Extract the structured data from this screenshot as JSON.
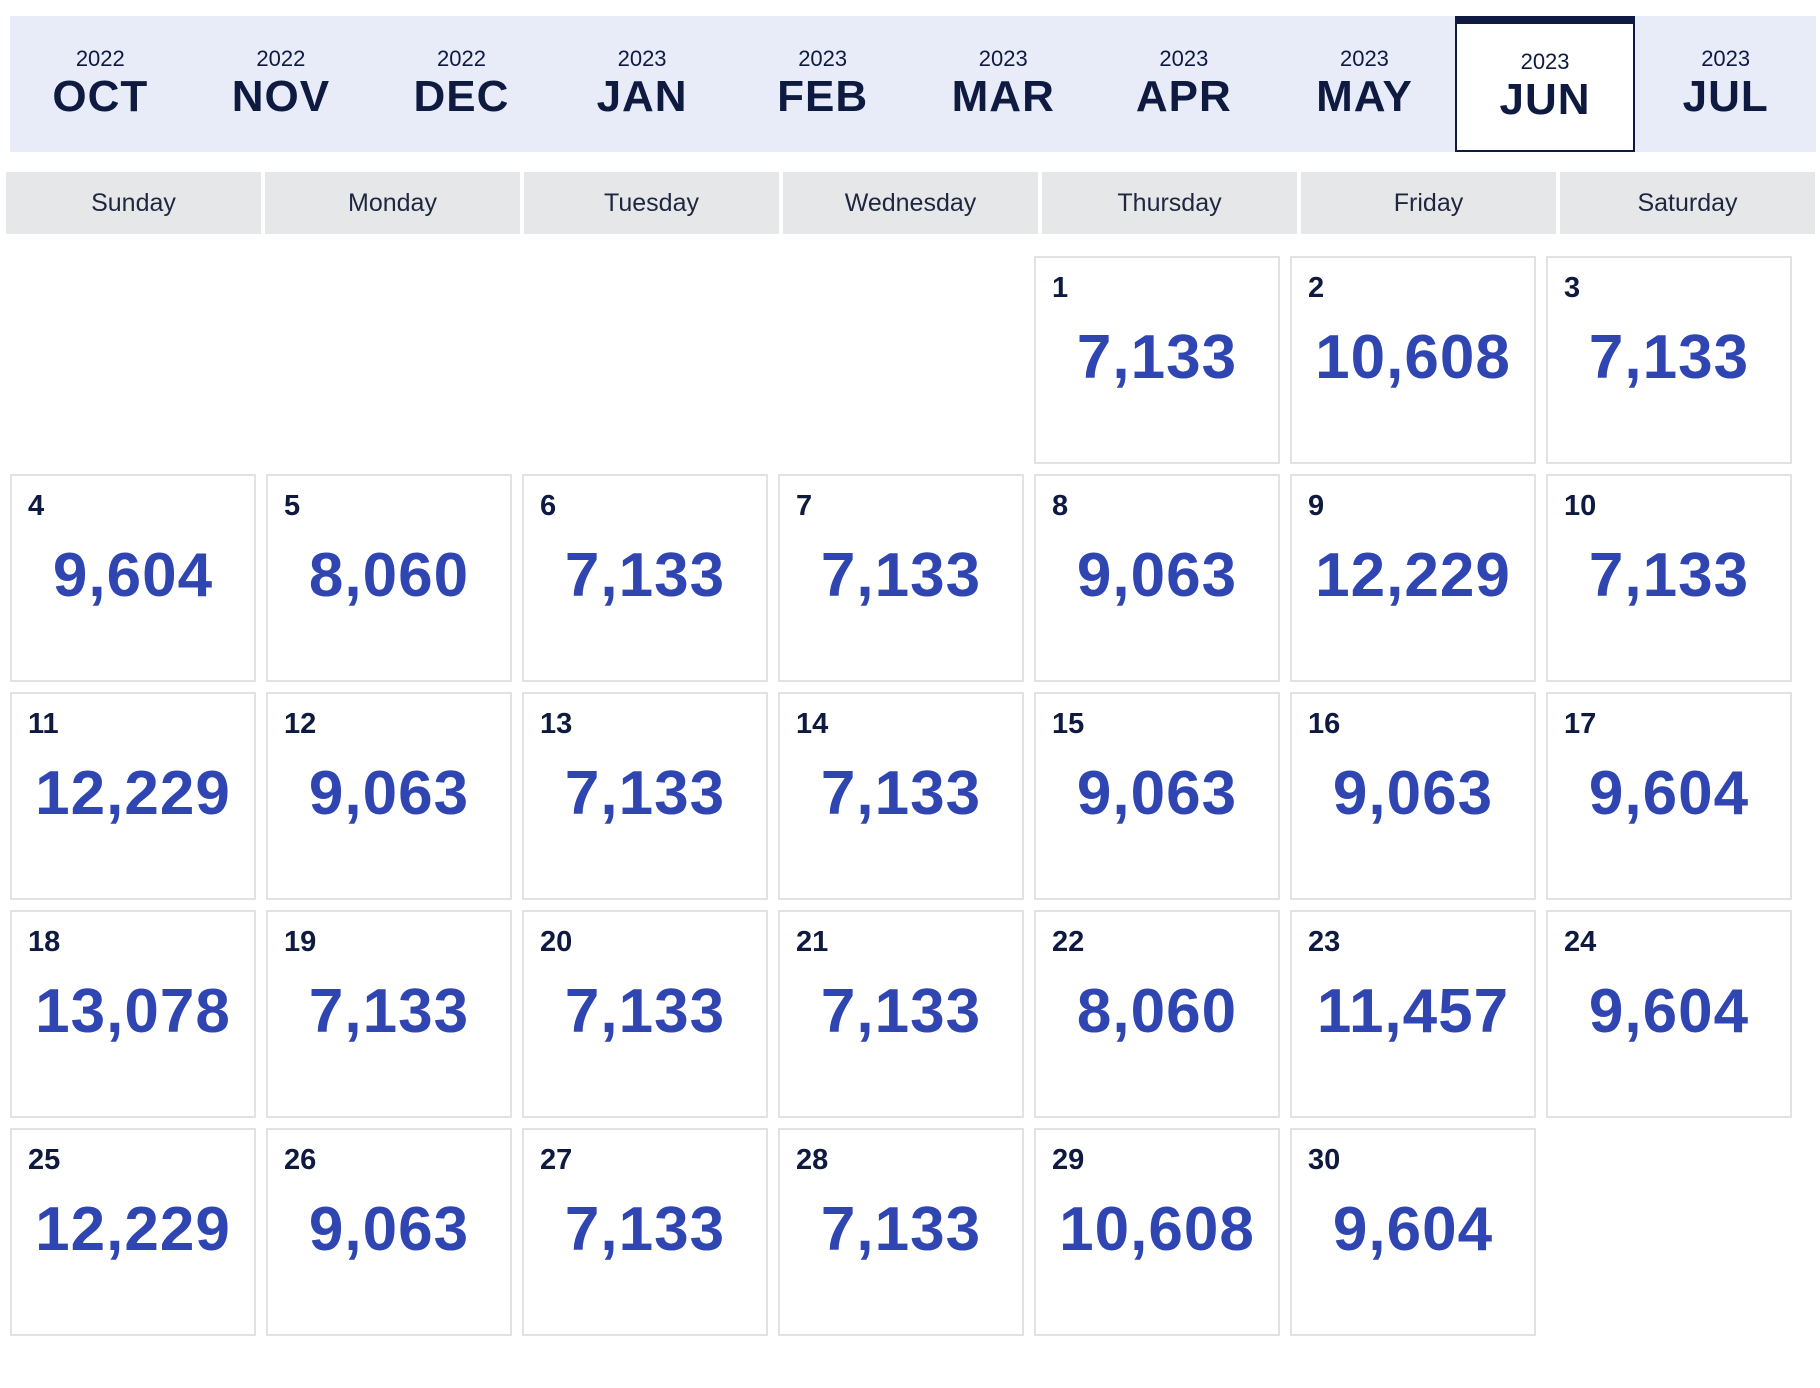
{
  "months": [
    {
      "year": "2022",
      "name": "OCT"
    },
    {
      "year": "2022",
      "name": "NOV"
    },
    {
      "year": "2022",
      "name": "DEC"
    },
    {
      "year": "2023",
      "name": "JAN"
    },
    {
      "year": "2023",
      "name": "FEB"
    },
    {
      "year": "2023",
      "name": "MAR"
    },
    {
      "year": "2023",
      "name": "APR"
    },
    {
      "year": "2023",
      "name": "MAY"
    },
    {
      "year": "2023",
      "name": "JUN",
      "selected": true
    },
    {
      "year": "2023",
      "name": "JUL"
    }
  ],
  "weekdays": [
    "Sunday",
    "Monday",
    "Tuesday",
    "Wednesday",
    "Thursday",
    "Friday",
    "Saturday"
  ],
  "first_weekday_index": 4,
  "days": [
    {
      "day": "1",
      "value": "7,133"
    },
    {
      "day": "2",
      "value": "10,608"
    },
    {
      "day": "3",
      "value": "7,133"
    },
    {
      "day": "4",
      "value": "9,604"
    },
    {
      "day": "5",
      "value": "8,060"
    },
    {
      "day": "6",
      "value": "7,133"
    },
    {
      "day": "7",
      "value": "7,133"
    },
    {
      "day": "8",
      "value": "9,063"
    },
    {
      "day": "9",
      "value": "12,229"
    },
    {
      "day": "10",
      "value": "7,133"
    },
    {
      "day": "11",
      "value": "12,229"
    },
    {
      "day": "12",
      "value": "9,063"
    },
    {
      "day": "13",
      "value": "7,133"
    },
    {
      "day": "14",
      "value": "7,133"
    },
    {
      "day": "15",
      "value": "9,063"
    },
    {
      "day": "16",
      "value": "9,063"
    },
    {
      "day": "17",
      "value": "9,604"
    },
    {
      "day": "18",
      "value": "13,078"
    },
    {
      "day": "19",
      "value": "7,133"
    },
    {
      "day": "20",
      "value": "7,133"
    },
    {
      "day": "21",
      "value": "7,133"
    },
    {
      "day": "22",
      "value": "8,060"
    },
    {
      "day": "23",
      "value": "11,457"
    },
    {
      "day": "24",
      "value": "9,604"
    },
    {
      "day": "25",
      "value": "12,229"
    },
    {
      "day": "26",
      "value": "9,063"
    },
    {
      "day": "27",
      "value": "7,133"
    },
    {
      "day": "28",
      "value": "7,133"
    },
    {
      "day": "29",
      "value": "10,608"
    },
    {
      "day": "30",
      "value": "9,604"
    }
  ],
  "colors": {
    "month_bar_bg": "#e8ecf8",
    "navy": "#0e1a3f",
    "value_blue": "#2f45b1",
    "weekday_bg": "#e6e7e8",
    "cell_border": "#e2e2e2"
  }
}
